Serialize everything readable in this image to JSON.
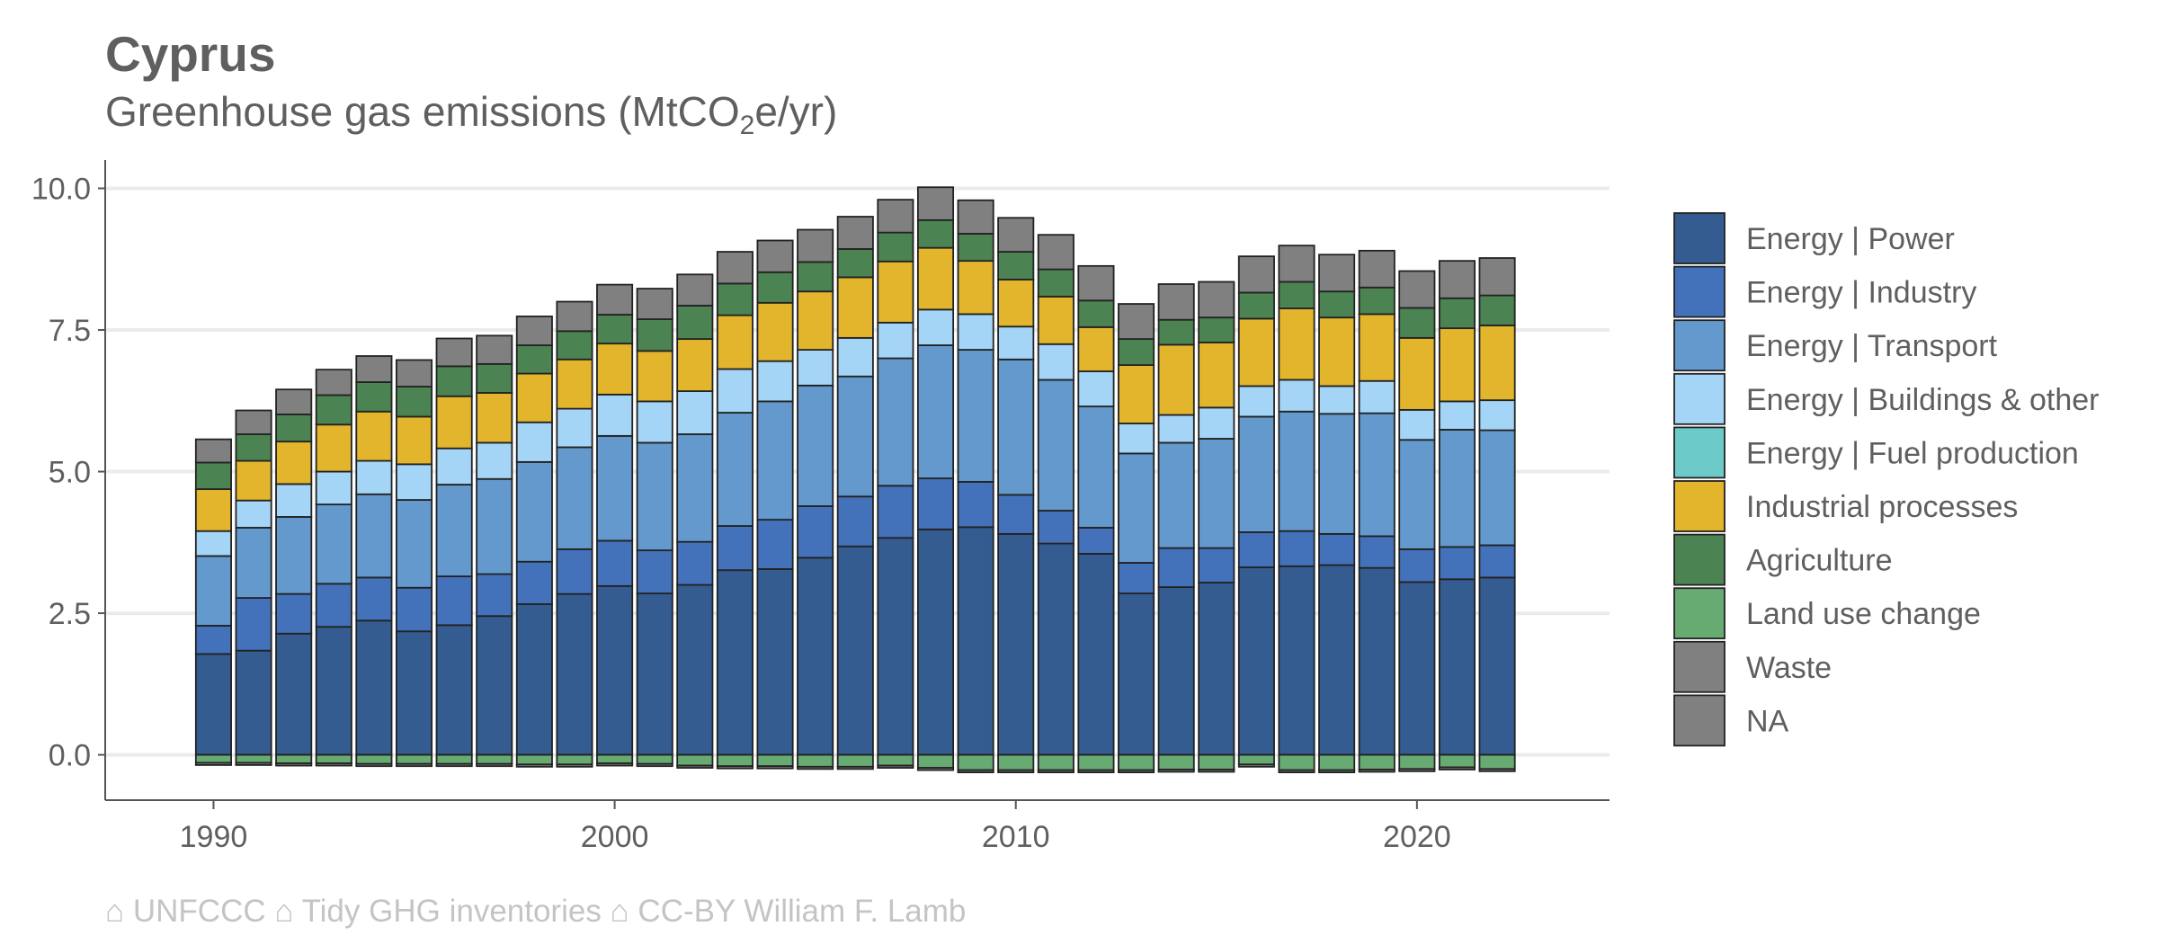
{
  "title": "Cyprus",
  "subtitle_main": "Greenhouse gas emissions (MtCO",
  "subtitle_sub": "2",
  "subtitle_tail": "e/yr)",
  "caption": "⌂ UNFCCC ⌂ Tidy GHG inventories ⌂ CC-BY William F. Lamb",
  "chart_data": {
    "type": "bar",
    "stacked": true,
    "title": "Cyprus",
    "ylabel": "",
    "xlabel": "",
    "xlim": [
      1987.3,
      2024.8
    ],
    "ylim": [
      -0.8,
      10.5
    ],
    "yticks": [
      0.0,
      2.5,
      5.0,
      7.5,
      10.0
    ],
    "ytick_labels": [
      "0.0",
      "2.5",
      "5.0",
      "7.5",
      "10.0"
    ],
    "xticks": [
      1990,
      2000,
      2010,
      2020
    ],
    "grid": "horizontal",
    "legend_position": "right",
    "x": [
      1990,
      1991,
      1992,
      1993,
      1994,
      1995,
      1996,
      1997,
      1998,
      1999,
      2000,
      2001,
      2002,
      2003,
      2004,
      2005,
      2006,
      2007,
      2008,
      2009,
      2010,
      2011,
      2012,
      2013,
      2014,
      2015,
      2016,
      2017,
      2018,
      2019,
      2020,
      2021,
      2022
    ],
    "series": [
      {
        "name": "Energy | Power",
        "color": "#345c91",
        "values": [
          1.78,
          1.84,
          2.14,
          2.26,
          2.37,
          2.18,
          2.29,
          2.45,
          2.66,
          2.84,
          2.98,
          2.85,
          3.0,
          3.26,
          3.28,
          3.48,
          3.68,
          3.83,
          3.98,
          4.02,
          3.9,
          3.73,
          3.55,
          2.85,
          2.96,
          3.04,
          3.31,
          3.33,
          3.35,
          3.3,
          3.05,
          3.1,
          3.13
        ]
      },
      {
        "name": "Energy | Industry",
        "color": "#4472ba",
        "values": [
          0.5,
          0.93,
          0.7,
          0.76,
          0.76,
          0.77,
          0.86,
          0.74,
          0.75,
          0.79,
          0.8,
          0.76,
          0.76,
          0.78,
          0.87,
          0.91,
          0.88,
          0.92,
          0.9,
          0.8,
          0.69,
          0.58,
          0.46,
          0.54,
          0.69,
          0.61,
          0.62,
          0.62,
          0.55,
          0.56,
          0.58,
          0.57,
          0.57
        ]
      },
      {
        "name": "Energy | Transport",
        "color": "#6399cc",
        "values": [
          1.23,
          1.24,
          1.36,
          1.4,
          1.47,
          1.55,
          1.62,
          1.68,
          1.76,
          1.8,
          1.85,
          1.9,
          1.9,
          2.0,
          2.09,
          2.13,
          2.12,
          2.25,
          2.35,
          2.33,
          2.39,
          2.31,
          2.14,
          1.93,
          1.86,
          1.93,
          2.04,
          2.11,
          2.12,
          2.17,
          1.93,
          2.07,
          2.03
        ]
      },
      {
        "name": "Energy | Buildings & other",
        "color": "#a5d5f6",
        "values": [
          0.44,
          0.48,
          0.58,
          0.58,
          0.59,
          0.63,
          0.64,
          0.64,
          0.7,
          0.68,
          0.73,
          0.73,
          0.76,
          0.77,
          0.71,
          0.63,
          0.68,
          0.63,
          0.63,
          0.63,
          0.58,
          0.63,
          0.62,
          0.53,
          0.49,
          0.55,
          0.54,
          0.56,
          0.49,
          0.57,
          0.53,
          0.5,
          0.53
        ]
      },
      {
        "name": "Energy | Fuel production",
        "color": "#6ccbc9",
        "values": [
          0,
          0,
          0,
          0,
          0,
          0,
          0,
          0,
          0,
          0,
          0,
          0,
          0,
          0,
          0,
          0,
          0,
          0,
          0,
          0,
          0,
          0,
          0,
          0,
          0,
          0,
          0,
          0,
          0,
          0,
          0,
          0,
          0
        ]
      },
      {
        "name": "Industrial processes",
        "color": "#e2b52c",
        "values": [
          0.74,
          0.7,
          0.75,
          0.83,
          0.87,
          0.84,
          0.92,
          0.88,
          0.86,
          0.87,
          0.9,
          0.89,
          0.92,
          0.95,
          1.03,
          1.03,
          1.07,
          1.08,
          1.09,
          0.94,
          0.83,
          0.84,
          0.78,
          1.03,
          1.24,
          1.15,
          1.19,
          1.26,
          1.21,
          1.18,
          1.27,
          1.29,
          1.32
        ]
      },
      {
        "name": "Agriculture",
        "color": "#4b8352",
        "values": [
          0.47,
          0.47,
          0.48,
          0.52,
          0.52,
          0.53,
          0.53,
          0.51,
          0.5,
          0.5,
          0.51,
          0.56,
          0.59,
          0.56,
          0.54,
          0.52,
          0.5,
          0.51,
          0.49,
          0.48,
          0.49,
          0.48,
          0.47,
          0.46,
          0.44,
          0.44,
          0.46,
          0.47,
          0.46,
          0.47,
          0.53,
          0.53,
          0.53
        ]
      },
      {
        "name": "Land use change",
        "color": "#67ab72",
        "values": [
          -0.14,
          -0.14,
          -0.15,
          -0.15,
          -0.16,
          -0.16,
          -0.16,
          -0.16,
          -0.17,
          -0.17,
          -0.15,
          -0.16,
          -0.19,
          -0.2,
          -0.2,
          -0.21,
          -0.21,
          -0.19,
          -0.23,
          -0.27,
          -0.27,
          -0.27,
          -0.27,
          -0.27,
          -0.26,
          -0.26,
          -0.17,
          -0.27,
          -0.27,
          -0.26,
          -0.25,
          -0.22,
          -0.25
        ]
      },
      {
        "name": "Waste",
        "color": "#808080",
        "values": [
          0.41,
          0.42,
          0.44,
          0.45,
          0.46,
          0.47,
          0.49,
          0.5,
          0.51,
          0.52,
          0.53,
          0.54,
          0.55,
          0.56,
          0.56,
          0.57,
          0.57,
          0.58,
          0.58,
          0.59,
          0.6,
          0.61,
          0.61,
          0.62,
          0.63,
          0.63,
          0.64,
          0.64,
          0.65,
          0.65,
          0.65,
          0.66,
          0.66
        ]
      },
      {
        "name": "NA",
        "color": "#808080",
        "values": [
          -0.04,
          -0.04,
          -0.04,
          -0.04,
          -0.04,
          -0.04,
          -0.04,
          -0.04,
          -0.04,
          -0.04,
          -0.04,
          -0.04,
          -0.04,
          -0.04,
          -0.04,
          -0.04,
          -0.04,
          -0.04,
          -0.04,
          -0.04,
          -0.04,
          -0.04,
          -0.04,
          -0.04,
          -0.04,
          -0.04,
          -0.04,
          -0.04,
          -0.04,
          -0.04,
          -0.04,
          -0.04,
          -0.04
        ]
      }
    ]
  }
}
